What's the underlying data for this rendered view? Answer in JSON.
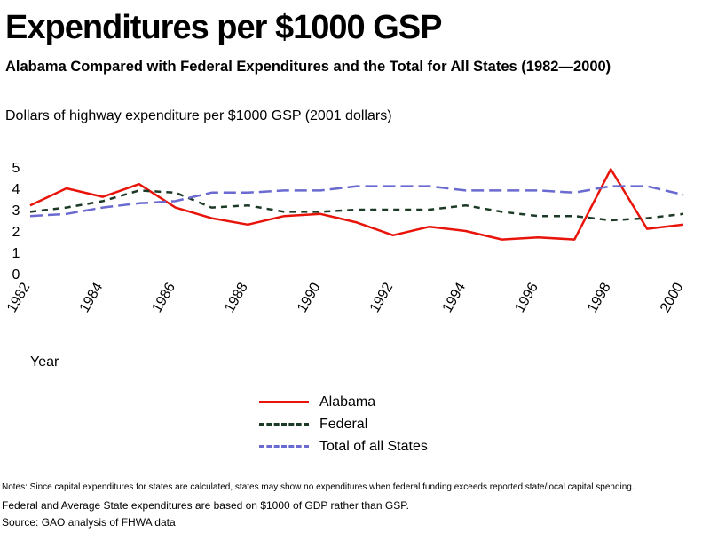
{
  "header": {
    "title": "Expenditures per $1000 GSP",
    "subtitle": "Alabama Compared with Federal Expenditures and the Total for All States (1982—2000)",
    "y_axis_title": "Dollars of highway expenditure per $1000 GSP (2001 dollars)",
    "x_axis_title": "Year"
  },
  "legend": [
    {
      "label": "Alabama",
      "color": "#e8140a",
      "style": "solid"
    },
    {
      "label": "Federal",
      "color": "#1c3a26",
      "style": "dashed"
    },
    {
      "label": "Total of all States",
      "color": "#6a6ad0",
      "style": "dashed"
    }
  ],
  "notes": [
    "Notes: Since capital expenditures for states are calculated, states may show no expenditures when federal funding exceeds reported state/local capital spending.",
    "Federal and Average State expenditures are based on $1000 of GDP rather than GSP.",
    "Source: GAO analysis of FHWA data"
  ],
  "chart_data": {
    "type": "line",
    "title": "Expenditures per $1000 GSP",
    "xlabel": "Year",
    "ylabel": "Dollars of highway expenditure per $1000 GSP (2001 dollars)",
    "x": [
      1982,
      1983,
      1984,
      1985,
      1986,
      1987,
      1988,
      1989,
      1990,
      1991,
      1992,
      1993,
      1994,
      1995,
      1996,
      1997,
      1998,
      1999,
      2000
    ],
    "x_tick_labels": [
      "1982",
      "1984",
      "1986",
      "1988",
      "1990",
      "1992",
      "1994",
      "1996",
      "1998",
      "2000"
    ],
    "y_tick_labels": [
      "0",
      "1",
      "2",
      "3",
      "4",
      "5"
    ],
    "ylim": [
      0,
      5
    ],
    "grid": false,
    "legend_position": "bottom",
    "series": [
      {
        "name": "Alabama",
        "color": "#e8140a",
        "dash": "none",
        "values": [
          3.2,
          4.0,
          3.6,
          4.2,
          3.1,
          2.6,
          2.3,
          2.7,
          2.8,
          2.4,
          1.8,
          2.2,
          2.0,
          1.6,
          1.7,
          1.6,
          4.9,
          2.1,
          2.3
        ]
      },
      {
        "name": "Federal",
        "color": "#1c3a26",
        "dash": "7,6",
        "values": [
          2.9,
          3.1,
          3.4,
          3.9,
          3.8,
          3.1,
          3.2,
          2.9,
          2.9,
          3.0,
          3.0,
          3.0,
          3.2,
          2.9,
          2.7,
          2.7,
          2.5,
          2.6,
          2.8
        ]
      },
      {
        "name": "Total of all States",
        "color": "#6a6ad0",
        "dash": "14,6",
        "values": [
          2.7,
          2.8,
          3.1,
          3.3,
          3.4,
          3.8,
          3.8,
          3.9,
          3.9,
          4.1,
          4.1,
          4.1,
          3.9,
          3.9,
          3.9,
          3.8,
          4.1,
          4.1,
          3.7
        ]
      }
    ]
  }
}
